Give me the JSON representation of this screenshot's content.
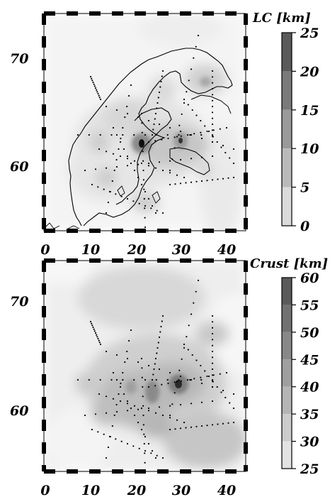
{
  "maps": [
    {
      "id": "lc",
      "colorbar_title": "LC [km]",
      "colorbar_ticks": [
        "25",
        "20",
        "15",
        "10",
        "5",
        "0"
      ],
      "colorbar_range": [
        0,
        25
      ],
      "lat_ticks": [
        "70",
        "60"
      ],
      "lon_ticks": [
        "0",
        "10",
        "20",
        "30",
        "40"
      ]
    },
    {
      "id": "crust",
      "colorbar_title": "Crust [km]",
      "colorbar_ticks": [
        "60",
        "55",
        "50",
        "45",
        "40",
        "35",
        "30",
        "25"
      ],
      "colorbar_range": [
        25,
        60
      ],
      "lat_ticks": [
        "70",
        "60"
      ],
      "lon_ticks": [
        "0",
        "10",
        "20",
        "30",
        "40"
      ]
    }
  ]
}
